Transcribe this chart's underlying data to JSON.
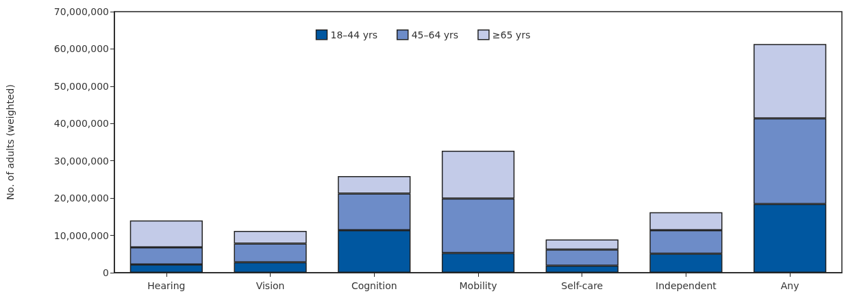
{
  "chart_data": {
    "type": "bar",
    "stacked": true,
    "ylabel": "No. of adults (weighted)",
    "categories": [
      "Hearing",
      "Vision",
      "Cognition",
      "Mobility",
      "Self-care",
      "Independent",
      "Any"
    ],
    "series": [
      {
        "name": "18–44 yrs",
        "color": "#0057a0",
        "values": [
          2200000,
          2800000,
          11400000,
          5300000,
          1900000,
          5100000,
          18400000
        ]
      },
      {
        "name": "45–64 yrs",
        "color": "#6d8cc8",
        "values": [
          4600000,
          5000000,
          9800000,
          14600000,
          4300000,
          6300000,
          23000000
        ]
      },
      {
        "name": "≥65 yrs",
        "color": "#c3cbe8",
        "values": [
          7200000,
          3400000,
          4700000,
          12800000,
          2700000,
          4800000,
          19900000
        ]
      }
    ],
    "ylim": [
      0,
      70000000
    ],
    "yticks": [
      0,
      {
        "value": 10000000,
        "label": "10,000,000"
      },
      {
        "value": 20000000,
        "label": "20,000,000"
      },
      {
        "value": 30000000,
        "label": "30,000,000"
      },
      {
        "value": 40000000,
        "label": "40,000,000"
      },
      {
        "value": 50000000,
        "label": "50,000,000"
      },
      {
        "value": 60000000,
        "label": "60,000,000"
      },
      {
        "value": 70000000,
        "label": "70,000,000"
      }
    ],
    "grid": false,
    "legend": "top"
  }
}
